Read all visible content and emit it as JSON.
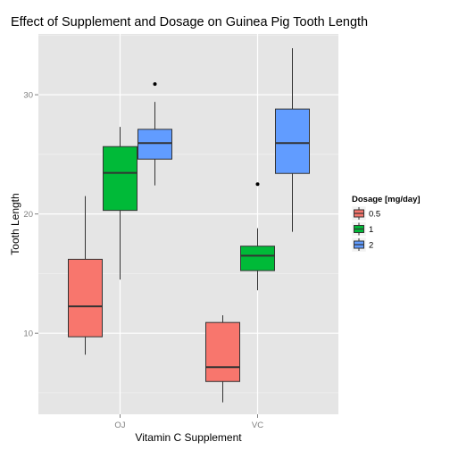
{
  "chart_data": {
    "type": "boxplot",
    "title": "Effect of Supplement and Dosage on Guinea Pig Tooth Length",
    "xlabel": "Vitamin C Supplement",
    "ylabel": "Tooth Length",
    "categories": [
      "OJ",
      "VC"
    ],
    "y_ticks": [
      "10",
      "20",
      "30"
    ],
    "ylim": [
      3.2,
      35.1
    ],
    "grid": true,
    "background": "#e5e5e5",
    "legend": {
      "title": "Dosage [mg/day]",
      "placement": "right"
    },
    "series": [
      {
        "name": "0.5",
        "color": "#f8766d",
        "boxes": [
          {
            "category": "OJ",
            "whisker_low": 8.2,
            "q1": 9.7,
            "median": 12.25,
            "q3": 16.2,
            "whisker_high": 21.5,
            "outliers": []
          },
          {
            "category": "VC",
            "whisker_low": 4.2,
            "q1": 5.95,
            "median": 7.15,
            "q3": 10.9,
            "whisker_high": 11.5,
            "outliers": []
          }
        ]
      },
      {
        "name": "1",
        "color": "#00ba38",
        "boxes": [
          {
            "category": "OJ",
            "whisker_low": 14.5,
            "q1": 20.3,
            "median": 23.45,
            "q3": 25.65,
            "whisker_high": 27.3,
            "outliers": []
          },
          {
            "category": "VC",
            "whisker_low": 13.6,
            "q1": 15.25,
            "median": 16.5,
            "q3": 17.3,
            "whisker_high": 18.8,
            "outliers": [
              22.5
            ]
          }
        ]
      },
      {
        "name": "2",
        "color": "#619cff",
        "boxes": [
          {
            "category": "OJ",
            "whisker_low": 22.4,
            "q1": 24.6,
            "median": 25.95,
            "q3": 27.1,
            "whisker_high": 29.4,
            "outliers": [
              30.9
            ]
          },
          {
            "category": "VC",
            "whisker_low": 18.5,
            "q1": 23.4,
            "median": 25.95,
            "q3": 28.8,
            "whisker_high": 33.9,
            "outliers": []
          }
        ]
      }
    ]
  }
}
